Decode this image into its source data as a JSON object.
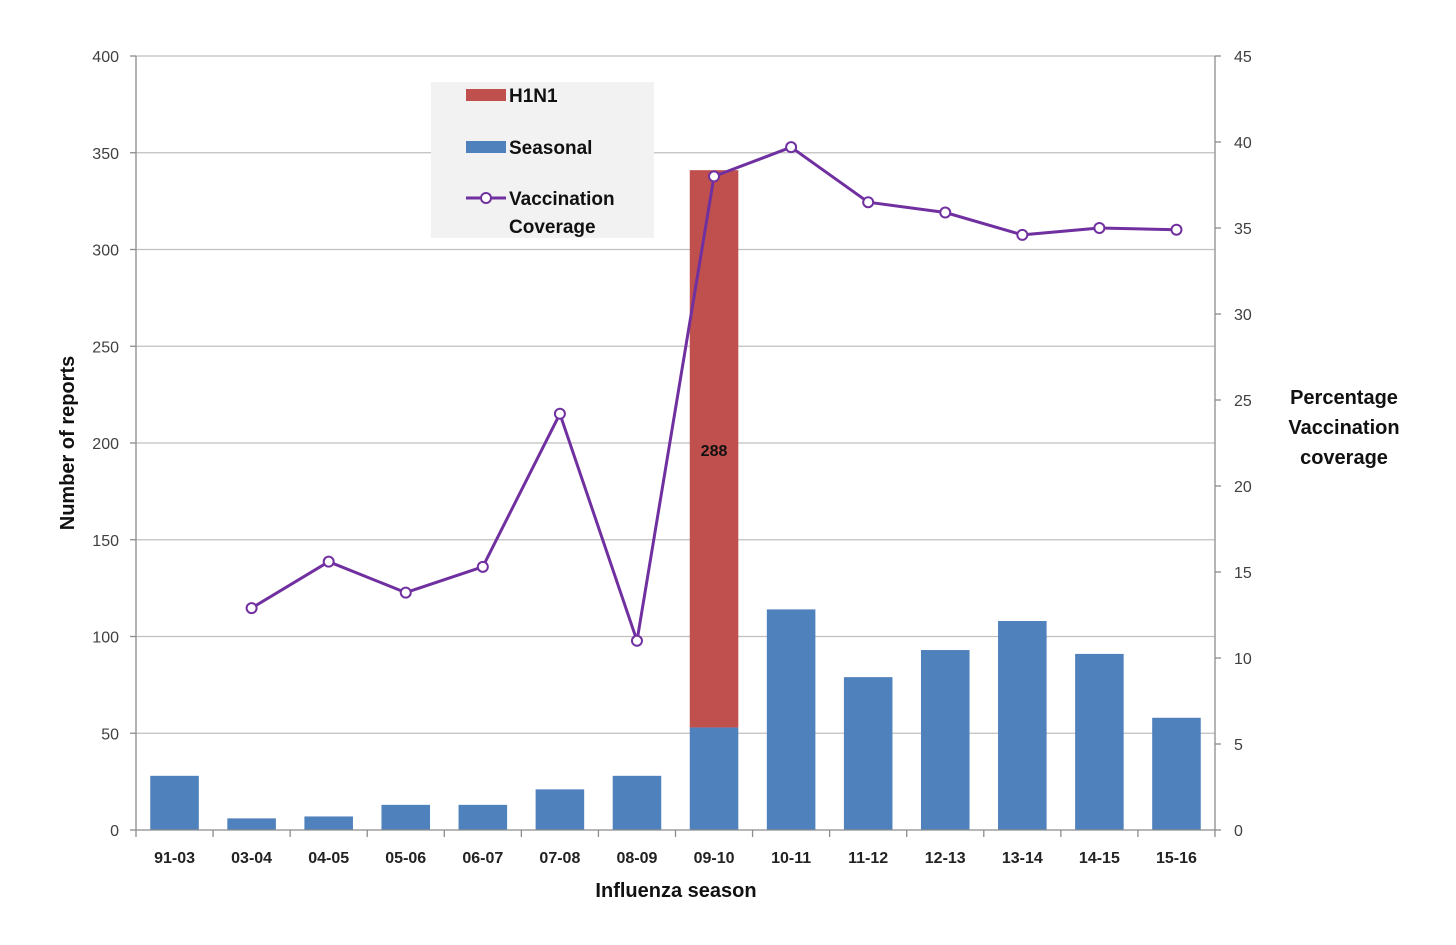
{
  "chart_data": {
    "type": "bar",
    "categories": [
      "91-03",
      "03-04",
      "04-05",
      "05-06",
      "06-07",
      "07-08",
      "08-09",
      "09-10",
      "10-11",
      "11-12",
      "12-13",
      "13-14",
      "14-15",
      "15-16"
    ],
    "series": [
      {
        "name": "Seasonal",
        "kind": "bar",
        "axis": "left",
        "color": "#4F81BD",
        "values": [
          28,
          6,
          7,
          13,
          13,
          21,
          28,
          53,
          114,
          79,
          93,
          108,
          91,
          58
        ]
      },
      {
        "name": "H1N1",
        "kind": "bar-stacked",
        "axis": "left",
        "color": "#C0504D",
        "values": [
          0,
          0,
          0,
          0,
          0,
          0,
          0,
          288,
          0,
          0,
          0,
          0,
          0,
          0
        ]
      },
      {
        "name": "Vaccination Coverage",
        "kind": "line",
        "axis": "right",
        "color": "#7030A0",
        "values": [
          null,
          12.9,
          15.6,
          13.8,
          15.3,
          24.2,
          11.0,
          38.0,
          39.7,
          36.5,
          35.9,
          34.6,
          35.0,
          34.9
        ]
      }
    ],
    "data_labels": [
      {
        "category": "09-10",
        "series": "H1N1",
        "text": "288"
      }
    ],
    "xlabel": "Influenza season",
    "ylabel": "Number of reports",
    "ylabel_right": "Percentage Vaccination coverage",
    "ylabel_right_lines": [
      "Percentage",
      "Vaccination",
      "coverage"
    ],
    "ylim": [
      0,
      400
    ],
    "yticks": [
      0,
      50,
      100,
      150,
      200,
      250,
      300,
      350,
      400
    ],
    "ylim_right": [
      0,
      45
    ],
    "yticks_right": [
      0,
      5,
      10,
      15,
      20,
      25,
      30,
      35,
      40,
      45
    ],
    "grid": true,
    "legend": {
      "placement": "top-left",
      "entries": [
        {
          "label": "H1N1",
          "lines": [
            "H1N1"
          ],
          "marker": "bar",
          "color": "#C0504D"
        },
        {
          "label": "Seasonal",
          "lines": [
            "Seasonal"
          ],
          "marker": "bar",
          "color": "#4F81BD"
        },
        {
          "label": "Vaccination Coverage",
          "lines": [
            "Vaccination",
            "Coverage"
          ],
          "marker": "line",
          "color": "#7030A0"
        }
      ]
    }
  }
}
